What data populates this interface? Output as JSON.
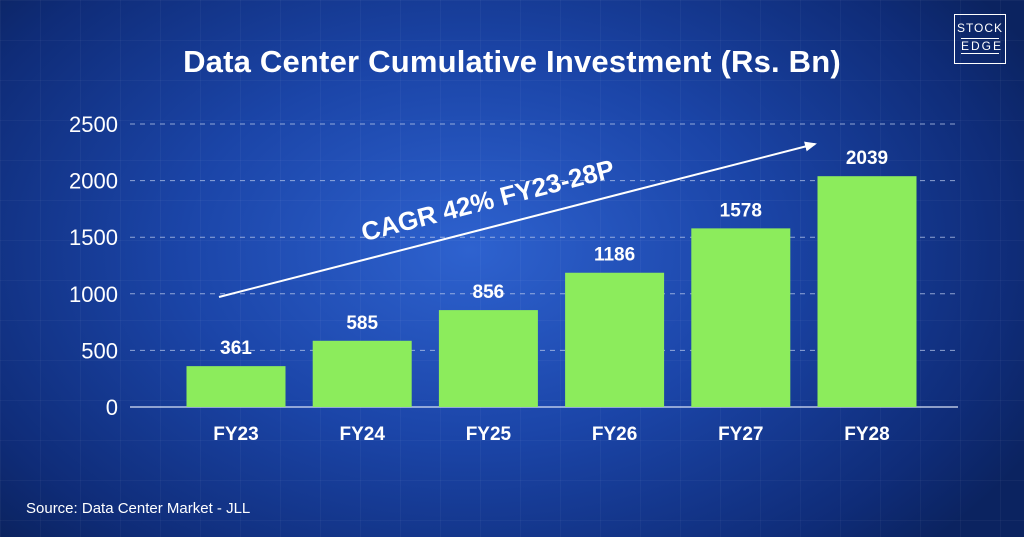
{
  "logo": {
    "line1": "STOCK",
    "line2": "EDGE"
  },
  "footer": {
    "source": "Source: Data Center Market - JLL"
  },
  "colors": {
    "bar": "#8cec5c",
    "text": "#ffffff",
    "grid": "#b9c8ea"
  },
  "chart_data": {
    "type": "bar",
    "title": "Data Center Cumulative Investment (Rs. Bn)",
    "categories": [
      "FY23",
      "FY24",
      "FY25",
      "FY26",
      "FY27",
      "FY28"
    ],
    "values": [
      361,
      585,
      856,
      1186,
      1578,
      2039
    ],
    "data_labels": [
      "361",
      "585",
      "856",
      "1186",
      "1578",
      "2039"
    ],
    "yticks": [
      0,
      500,
      1000,
      1500,
      2000,
      2500
    ],
    "ylim": [
      0,
      2500
    ],
    "grid": "horizontal dashed",
    "xlabel": "",
    "ylabel": "",
    "annotation": "CAGR 42% FY23-28P"
  }
}
